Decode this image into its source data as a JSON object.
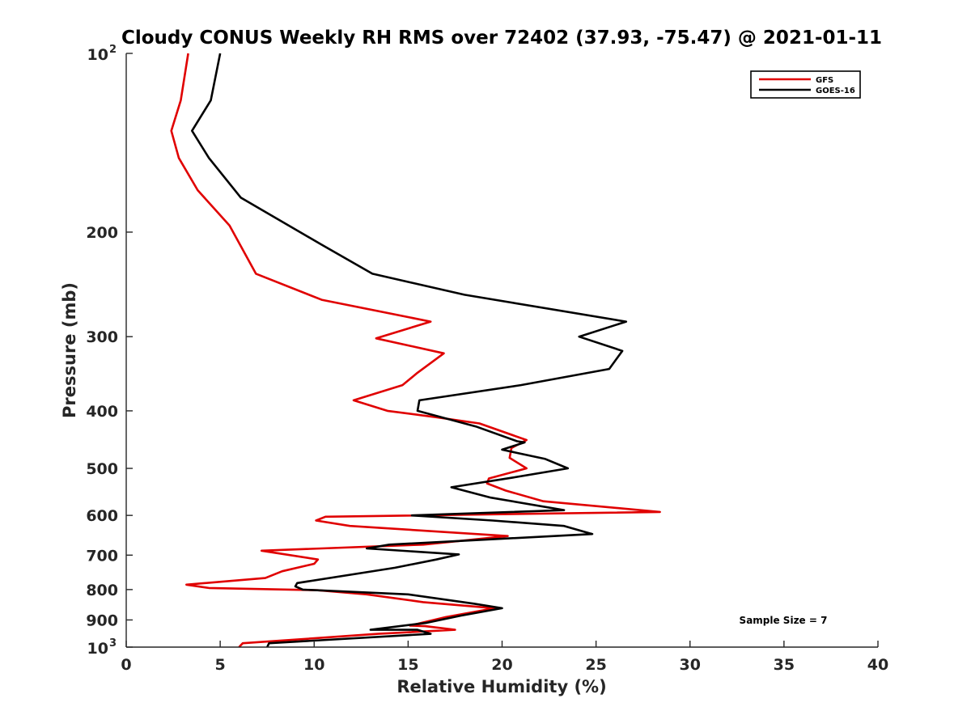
{
  "chart_data": {
    "type": "line",
    "title": "Cloudy CONUS Weekly RH RMS over 72402 (37.93, -75.47) @ 2021-01-11",
    "xlabel": "Relative Humidity (%)",
    "ylabel": "Pressure (mb)",
    "xlim": [
      0,
      40
    ],
    "ylim": [
      100,
      1000
    ],
    "y_scale": "log",
    "y_reversed": true,
    "x_ticks": [
      0,
      5,
      10,
      15,
      20,
      25,
      30,
      35,
      40
    ],
    "x_tick_labels": [
      "0",
      "5",
      "10",
      "15",
      "20",
      "25",
      "30",
      "35",
      "40"
    ],
    "y_ticks": [
      200,
      300,
      400,
      500,
      600,
      700,
      800,
      900
    ],
    "y_tick_labels": [
      "200",
      "300",
      "400",
      "500",
      "600",
      "700",
      "800",
      "900"
    ],
    "y_decade_labels": [
      {
        "value": 100,
        "base": "10",
        "exp": "2"
      },
      {
        "value": 1000,
        "base": "10",
        "exp": "3"
      }
    ],
    "grid": false,
    "legend_position": "top-right",
    "annotation": "Sample Size = 7",
    "series": [
      {
        "name": "GFS",
        "color": "#e00000",
        "points": [
          [
            3.3,
            100
          ],
          [
            2.9,
            120
          ],
          [
            2.4,
            135
          ],
          [
            2.8,
            150
          ],
          [
            3.8,
            170
          ],
          [
            5.5,
            195
          ],
          [
            6.9,
            235
          ],
          [
            10.4,
            260
          ],
          [
            16.2,
            283
          ],
          [
            13.3,
            302
          ],
          [
            16.9,
            320
          ],
          [
            15.5,
            345
          ],
          [
            14.7,
            362
          ],
          [
            12.1,
            384
          ],
          [
            13.9,
            400
          ],
          [
            16.5,
            410
          ],
          [
            18.8,
            420
          ],
          [
            21.3,
            448
          ],
          [
            20.5,
            462
          ],
          [
            20.4,
            480
          ],
          [
            21.3,
            500
          ],
          [
            19.3,
            520
          ],
          [
            19.2,
            530
          ],
          [
            20.2,
            545
          ],
          [
            22.2,
            568
          ],
          [
            28.4,
            592
          ],
          [
            10.6,
            603
          ],
          [
            10.1,
            612
          ],
          [
            11.9,
            625
          ],
          [
            20.3,
            650
          ],
          [
            15.8,
            672
          ],
          [
            7.2,
            688
          ],
          [
            10.2,
            712
          ],
          [
            10.0,
            724
          ],
          [
            8.3,
            745
          ],
          [
            7.4,
            765
          ],
          [
            3.2,
            785
          ],
          [
            4.4,
            795
          ],
          [
            10.2,
            802
          ],
          [
            12.8,
            815
          ],
          [
            15.8,
            840
          ],
          [
            19.6,
            860
          ],
          [
            17.0,
            890
          ],
          [
            15.1,
            920
          ],
          [
            15.9,
            922
          ],
          [
            17.5,
            935
          ],
          [
            13.4,
            950
          ],
          [
            6.2,
            985
          ],
          [
            6.0,
            1000
          ]
        ]
      },
      {
        "name": "GOES-16",
        "color": "#000000",
        "points": [
          [
            5.0,
            100
          ],
          [
            4.5,
            120
          ],
          [
            3.5,
            135
          ],
          [
            4.4,
            150
          ],
          [
            6.1,
            175
          ],
          [
            10.4,
            210
          ],
          [
            13.1,
            235
          ],
          [
            18.0,
            255
          ],
          [
            26.6,
            283
          ],
          [
            24.1,
            300
          ],
          [
            26.4,
            317
          ],
          [
            25.7,
            340
          ],
          [
            21.0,
            362
          ],
          [
            15.6,
            384
          ],
          [
            15.5,
            400
          ],
          [
            18.6,
            425
          ],
          [
            20.8,
            450
          ],
          [
            21.2,
            452
          ],
          [
            20.0,
            465
          ],
          [
            22.3,
            482
          ],
          [
            23.5,
            500
          ],
          [
            20.6,
            518
          ],
          [
            17.3,
            538
          ],
          [
            19.4,
            560
          ],
          [
            23.3,
            588
          ],
          [
            15.2,
            600
          ],
          [
            19.5,
            612
          ],
          [
            23.3,
            625
          ],
          [
            24.8,
            645
          ],
          [
            14.0,
            672
          ],
          [
            12.8,
            682
          ],
          [
            17.7,
            698
          ],
          [
            16.5,
            712
          ],
          [
            14.3,
            735
          ],
          [
            9.1,
            780
          ],
          [
            9.0,
            790
          ],
          [
            9.4,
            800
          ],
          [
            15.0,
            815
          ],
          [
            18.5,
            845
          ],
          [
            20.0,
            860
          ],
          [
            17.8,
            885
          ],
          [
            16.0,
            910
          ],
          [
            13.0,
            935
          ],
          [
            15.5,
            935
          ],
          [
            16.2,
            950
          ],
          [
            7.6,
            985
          ],
          [
            7.5,
            1000
          ]
        ]
      }
    ]
  }
}
